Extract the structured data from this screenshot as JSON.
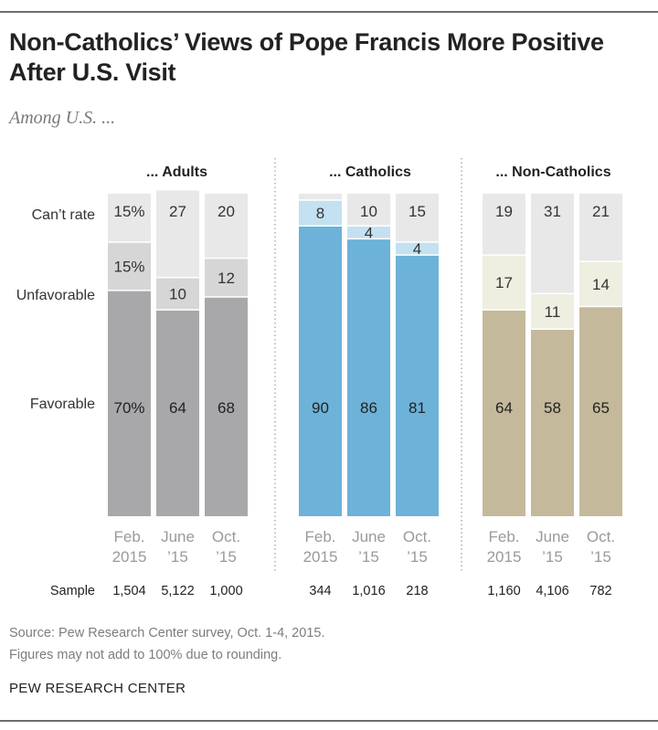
{
  "title": "Non-Catholics’ Views of Pope Francis More Positive After U.S. Visit",
  "subtitle": "Among U.S. ...",
  "source": "Source: Pew Research Center survey, Oct. 1-4, 2015.",
  "note": "Figures may not add to 100% due to rounding.",
  "brand": "PEW RESEARCH CENTER",
  "chart_data": {
    "type": "bar",
    "stacked": true,
    "scale_max": 100,
    "row_labels": [
      "Can’t rate",
      "Unfavorable",
      "Favorable"
    ],
    "sample_label": "Sample",
    "periods": [
      {
        "line1": "Feb.",
        "line2": "2015"
      },
      {
        "line1": "June",
        "line2": "’15"
      },
      {
        "line1": "Oct.",
        "line2": "’15"
      }
    ],
    "groups": [
      {
        "name": "... Adults",
        "colors": {
          "favorable": "#a8a8aa",
          "unfavorable": "#d6d6d7",
          "cant_rate": "#e8e8e9"
        },
        "favorable": [
          70,
          64,
          68
        ],
        "unfavorable": [
          15,
          10,
          12
        ],
        "cant_rate": [
          15,
          27,
          20
        ],
        "labels": {
          "favorable": [
            "70%",
            "64",
            "68"
          ],
          "unfavorable": [
            "15%",
            "10",
            "12"
          ],
          "cant_rate": [
            "15%",
            "27",
            "20"
          ]
        },
        "sample": [
          "1,504",
          "5,122",
          "1,000"
        ]
      },
      {
        "name": "... Catholics",
        "colors": {
          "favorable": "#6db2d8",
          "unfavorable": "#c3e1f0",
          "cant_rate": "#e8e8e9"
        },
        "favorable": [
          90,
          86,
          81
        ],
        "unfavorable": [
          8,
          4,
          4
        ],
        "cant_rate": [
          2,
          10,
          15
        ],
        "labels": {
          "favorable": [
            "90",
            "86",
            "81"
          ],
          "unfavorable": [
            "8",
            "4",
            "4"
          ],
          "cant_rate": [
            "",
            "10",
            "15"
          ]
        },
        "sample": [
          "344",
          "1,016",
          "218"
        ]
      },
      {
        "name": "... Non-Catholics",
        "colors": {
          "favorable": "#c4b99a",
          "unfavorable": "#eeeee1",
          "cant_rate": "#e8e8e9"
        },
        "favorable": [
          64,
          58,
          65
        ],
        "unfavorable": [
          17,
          11,
          14
        ],
        "cant_rate": [
          19,
          31,
          21
        ],
        "labels": {
          "favorable": [
            "64",
            "58",
            "65"
          ],
          "unfavorable": [
            "17",
            "11",
            "14"
          ],
          "cant_rate": [
            "19",
            "31",
            "21"
          ]
        },
        "sample": [
          "1,160",
          "4,106",
          "782"
        ]
      }
    ]
  }
}
